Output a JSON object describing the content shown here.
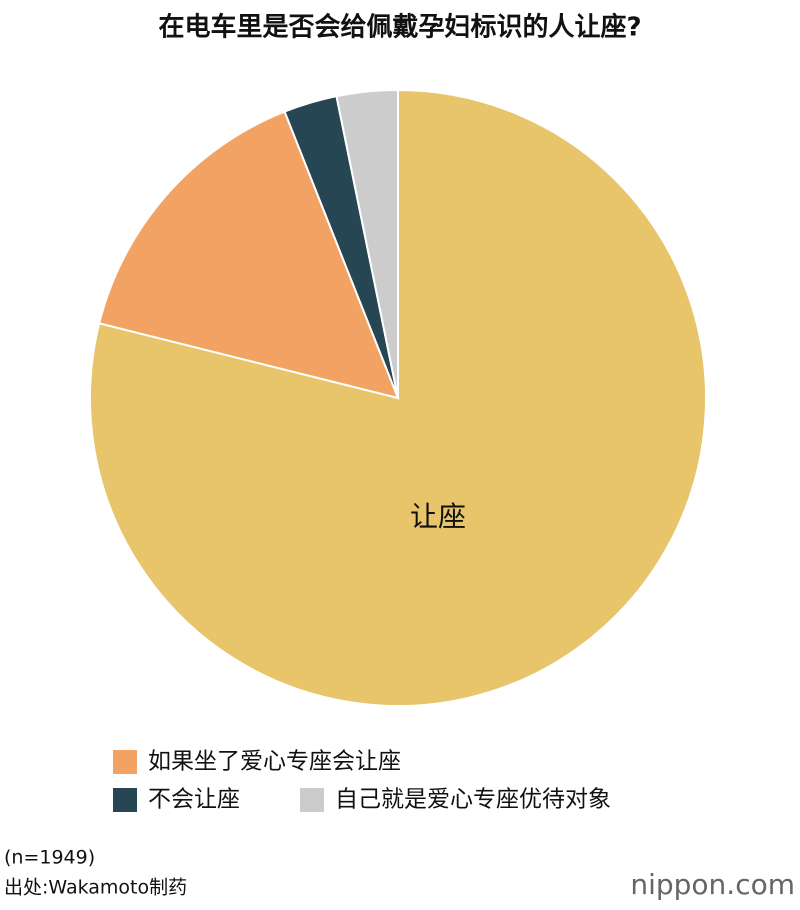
{
  "chart_data": {
    "type": "pie",
    "title": "在电车里是否会给佩戴孕妇标识的人让座?",
    "categories": [
      "让座",
      "如果坐了爱心专座会让座",
      "不会让座",
      "自己就是爱心专座优待对象"
    ],
    "values": [
      78.9,
      15.1,
      2.8,
      3.2
    ],
    "colors": [
      "#e8c46a",
      "#f2a263",
      "#264653",
      "#cccccc"
    ],
    "start_angle": "top",
    "direction": "clockwise"
  },
  "notes": {
    "sample": "(n=1949)",
    "source": "出处:Wakamoto制药"
  },
  "logo": "nippon.com"
}
